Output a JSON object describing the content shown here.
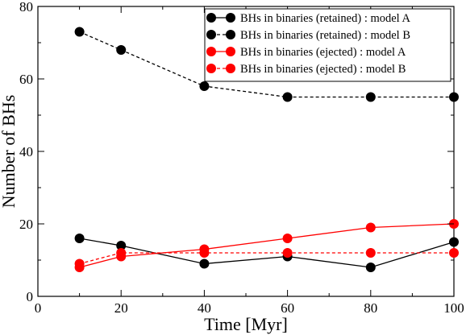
{
  "chart_data": {
    "type": "line",
    "xlabel": "Time [Myr]",
    "ylabel": "Number of BHs",
    "xlim": [
      0,
      100
    ],
    "ylim": [
      0,
      80
    ],
    "xticks": [
      0,
      20,
      40,
      60,
      80,
      100
    ],
    "yticks": [
      0,
      20,
      40,
      60,
      80
    ],
    "xtick_labels": [
      "0",
      "20",
      "40",
      "60",
      "80",
      "100"
    ],
    "ytick_labels": [
      "0",
      "20",
      "40",
      "60",
      "80"
    ],
    "legend_position": "top-right",
    "grid": false,
    "series": [
      {
        "name": "BHs in binaries (retained) : model A",
        "color": "#000000",
        "line_style": "solid",
        "x": [
          10,
          20,
          40,
          60,
          80,
          100
        ],
        "y": [
          16,
          14,
          9,
          11,
          8,
          15
        ]
      },
      {
        "name": "BHs in binaries (retained) : model B",
        "color": "#000000",
        "line_style": "dashed",
        "x": [
          10,
          20,
          40,
          60,
          80,
          100
        ],
        "y": [
          73,
          68,
          58,
          55,
          55,
          55
        ]
      },
      {
        "name": "BHs in binaries (ejected) : model A",
        "color": "#ff0000",
        "line_style": "solid",
        "x": [
          10,
          20,
          40,
          60,
          80,
          100
        ],
        "y": [
          8,
          11,
          13,
          16,
          19,
          20
        ]
      },
      {
        "name": "BHs in binaries (ejected) : model B",
        "color": "#ff0000",
        "line_style": "dashed",
        "x": [
          10,
          20,
          40,
          60,
          80,
          100
        ],
        "y": [
          9,
          12,
          12,
          12,
          12,
          12
        ]
      }
    ]
  }
}
